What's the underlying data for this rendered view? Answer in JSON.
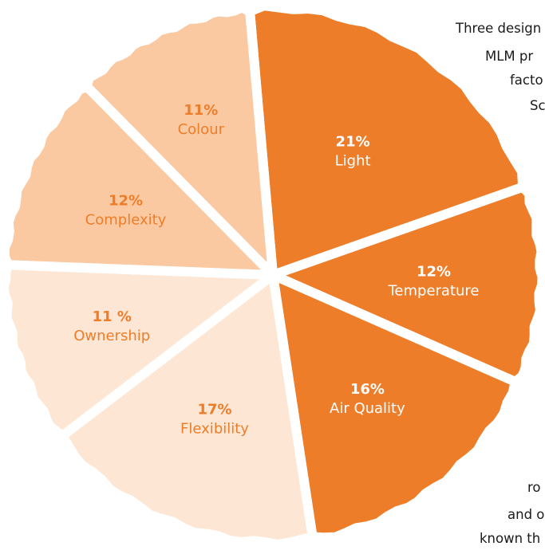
{
  "chart_data": {
    "type": "pie",
    "title": "",
    "legend": "none",
    "slices": [
      {
        "percent_label": "21%",
        "label": "Light",
        "value": 21,
        "color": "#ee7d2a",
        "label_color": "#ffffff"
      },
      {
        "percent_label": "12%",
        "label": "Temperature",
        "value": 12,
        "color": "#ee7d2a",
        "label_color": "#ffffff"
      },
      {
        "percent_label": "16%",
        "label": "Air Quality",
        "value": 16,
        "color": "#ee7d2a",
        "label_color": "#ffffff"
      },
      {
        "percent_label": "17%",
        "label": "Flexibility",
        "value": 17,
        "color": "#fde6d3",
        "label_color": "#ee7d2a"
      },
      {
        "percent_label": "11 %",
        "label": "Ownership",
        "value": 11,
        "color": "#fde6d3",
        "label_color": "#ee7d2a"
      },
      {
        "percent_label": "12%",
        "label": "Complexity",
        "value": 12,
        "color": "#fac9a2",
        "label_color": "#ee7d2a"
      },
      {
        "percent_label": "11%",
        "label": "Colour",
        "value": 11,
        "color": "#fac9a2",
        "label_color": "#ee7d2a"
      }
    ]
  },
  "side_text": {
    "line1": "Three design",
    "line2": "MLM pr",
    "line3": "facto",
    "line4": "Sc",
    "line5": "ro",
    "line6": "and o",
    "line7": "known th"
  }
}
